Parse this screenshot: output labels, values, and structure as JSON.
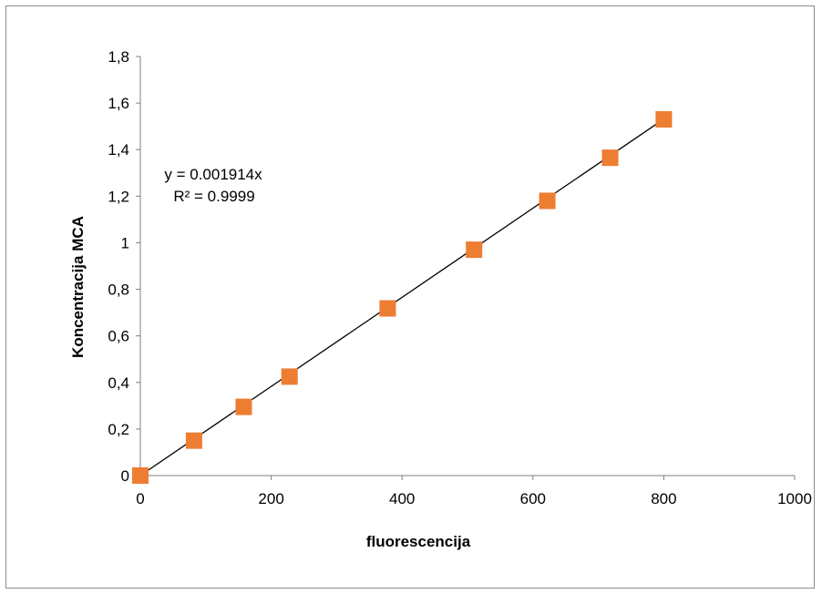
{
  "chart_data": {
    "type": "scatter",
    "title": "",
    "xlabel": "fluorescencija",
    "ylabel": "Koncentracija MCA",
    "xlim": [
      0,
      1000
    ],
    "ylim": [
      0,
      1.8
    ],
    "x_ticks": [
      0,
      200,
      400,
      600,
      800,
      1000
    ],
    "x_tick_labels": [
      "0",
      "200",
      "400",
      "600",
      "800",
      "1000"
    ],
    "y_ticks": [
      0,
      0.2,
      0.4,
      0.6,
      0.8,
      1,
      1.2,
      1.4,
      1.6,
      1.8
    ],
    "y_tick_labels": [
      "0",
      "0,2",
      "0,4",
      "0,6",
      "0,8",
      "1",
      "1,2",
      "1,4",
      "1,6",
      "1,8"
    ],
    "grid": false,
    "series": [
      {
        "marker": "square",
        "color": "#ED7D31",
        "points": [
          {
            "x": 0,
            "y": 0
          },
          {
            "x": 82,
            "y": 0.15
          },
          {
            "x": 158,
            "y": 0.295
          },
          {
            "x": 228,
            "y": 0.425
          },
          {
            "x": 378,
            "y": 0.718
          },
          {
            "x": 510,
            "y": 0.97
          },
          {
            "x": 622,
            "y": 1.18
          },
          {
            "x": 718,
            "y": 1.365
          },
          {
            "x": 800,
            "y": 1.53
          }
        ]
      }
    ],
    "trendline": {
      "type": "linear",
      "slope": 0.001914,
      "intercept": 0,
      "x_range": [
        0,
        800
      ],
      "color": "#000000",
      "equation": "y = 0.001914x",
      "r_squared": "R² = 0.9999"
    }
  }
}
